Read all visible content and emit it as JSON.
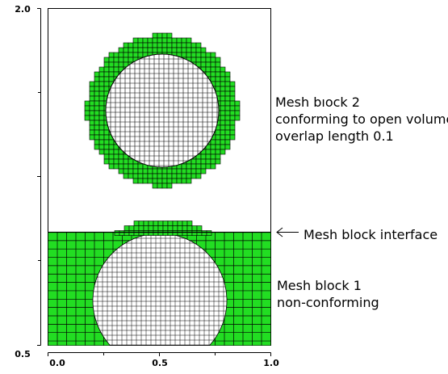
{
  "figure": {
    "axis": {
      "x_ticks": [
        "0.0",
        "0.5",
        "1.0"
      ],
      "y_ticks": [
        "0.5",
        "2.0"
      ]
    },
    "annotations": {
      "block2": [
        "Mesh bıock 2",
        "conforming to open volume",
        "overlap length 0.1"
      ],
      "interface": "Mesh block interface",
      "block1": [
        "Mesh block 1",
        "non-conforming"
      ]
    },
    "colors": {
      "mesh_fill": "#22dd22",
      "grid_line": "#000000",
      "hole_fill": "#ffffff",
      "frame": "#000000"
    },
    "icons": {
      "interface_pointer": "arrow-left-icon"
    }
  }
}
